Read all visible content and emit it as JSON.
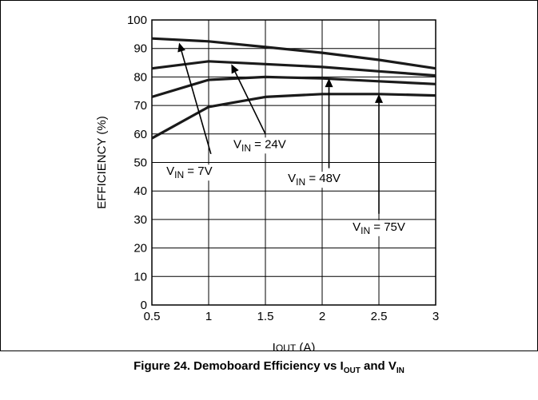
{
  "figure": {
    "caption_prefix": "Figure 24. Demoboard Efficiency vs I",
    "caption_sub1": "OUT",
    "caption_mid": " and V",
    "caption_sub2": "IN"
  },
  "chart_data": {
    "type": "line",
    "xlabel": "I",
    "xlabel_sub": "OUT",
    "xlabel_unit": " (A)",
    "ylabel": "EFFICIENCY (%)",
    "xlim": [
      0.5,
      3
    ],
    "ylim": [
      0,
      100
    ],
    "xticks": [
      "0.5",
      "1",
      "1.5",
      "2",
      "2.5",
      "3"
    ],
    "yticks": [
      "0",
      "10",
      "20",
      "30",
      "40",
      "50",
      "60",
      "70",
      "80",
      "90",
      "100"
    ],
    "grid": true,
    "series": [
      {
        "name": "V",
        "name_sub": "IN",
        "name_suffix": " = 7V",
        "x": [
          0.5,
          1,
          1.5,
          2,
          2.5,
          3
        ],
        "y": [
          93.5,
          92.5,
          90.5,
          88.5,
          86,
          83
        ]
      },
      {
        "name": "V",
        "name_sub": "IN",
        "name_suffix": " = 24V",
        "x": [
          0.5,
          1,
          1.5,
          2,
          2.5,
          3
        ],
        "y": [
          83,
          85.5,
          84.5,
          83.5,
          82,
          80.5
        ]
      },
      {
        "name": "V",
        "name_sub": "IN",
        "name_suffix": " = 48V",
        "x": [
          0.5,
          1,
          1.5,
          2,
          2.5,
          3
        ],
        "y": [
          73,
          79,
          80,
          79.5,
          78.5,
          77.5
        ]
      },
      {
        "name": "V",
        "name_sub": "IN",
        "name_suffix": " = 75V",
        "x": [
          0.5,
          1,
          1.5,
          2,
          2.5,
          3
        ],
        "y": [
          58.5,
          69.5,
          73,
          74,
          74,
          73.5
        ]
      }
    ],
    "annotations": [
      {
        "series": 0,
        "text_x": 0.83,
        "text_y": 47,
        "tip_x": 0.74,
        "tip_y": 92,
        "tail_x": 1.02,
        "tail_y": 53
      },
      {
        "series": 1,
        "text_x": 1.45,
        "text_y": 56.5,
        "tip_x": 1.2,
        "tip_y": 84.5,
        "tail_x": 1.5,
        "tail_y": 60
      },
      {
        "series": 2,
        "text_x": 1.93,
        "text_y": 44.5,
        "tip_x": 2.06,
        "tip_y": 79.5,
        "tail_x": 2.06,
        "tail_y": 48
      },
      {
        "series": 3,
        "text_x": 2.5,
        "text_y": 27.5,
        "tip_x": 2.5,
        "tip_y": 74,
        "tail_x": 2.5,
        "tail_y": 32
      }
    ]
  }
}
